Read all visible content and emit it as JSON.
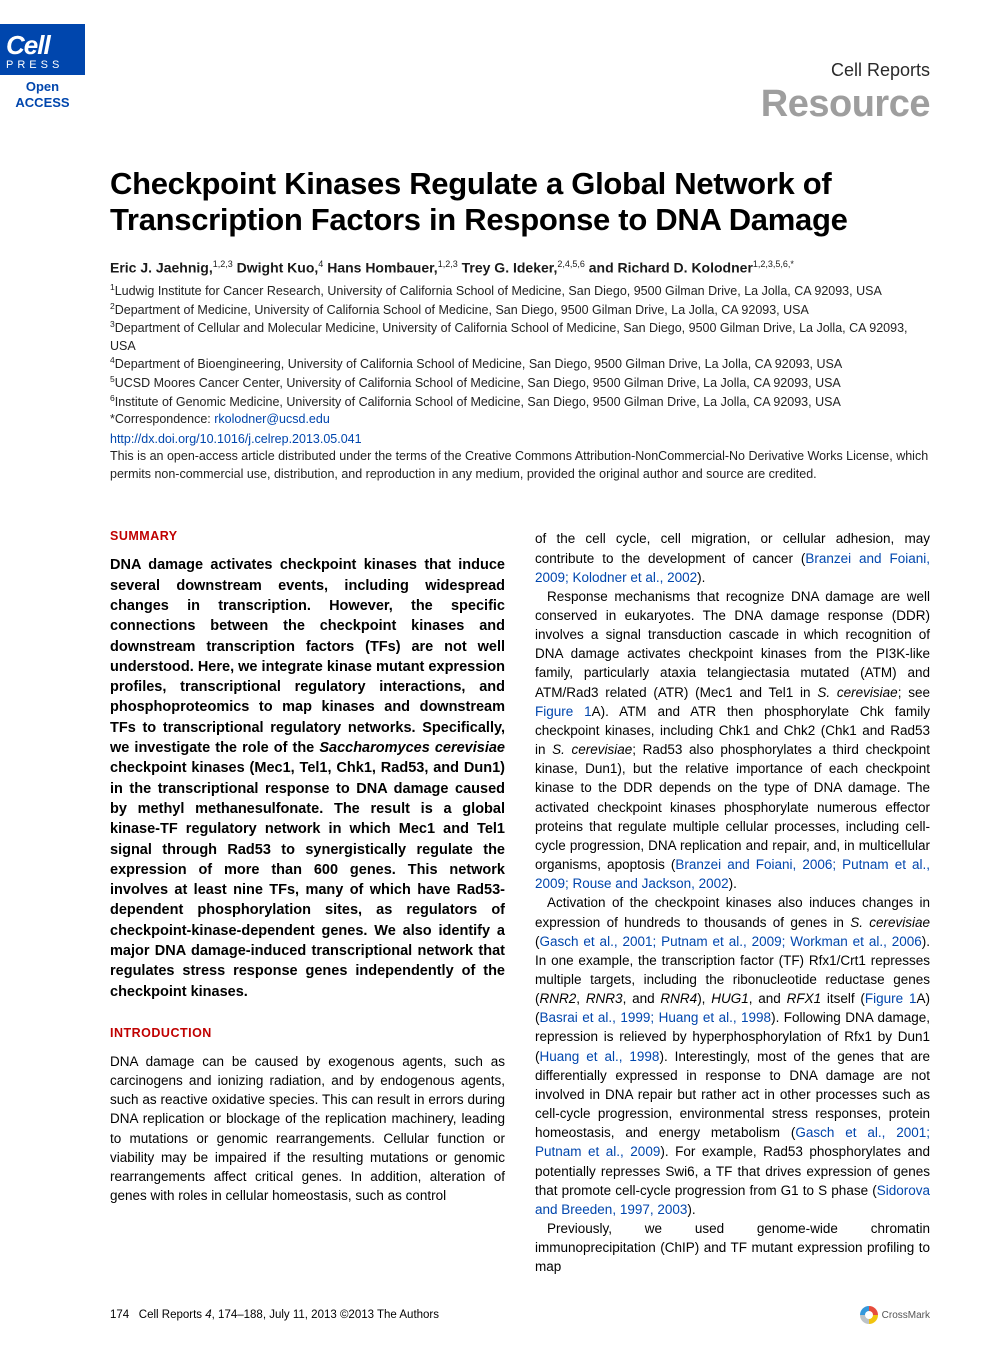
{
  "badge": {
    "logo_top": "Cell",
    "logo_bottom": "PRESS",
    "open_access": "Open\nACCESS"
  },
  "header": {
    "journal": "Cell Reports",
    "article_type": "Resource"
  },
  "title": "Checkpoint Kinases Regulate a Global Network of Transcription Factors in Response to DNA Damage",
  "authors_html": "Eric J. Jaehnig,<sup>1,2,3</sup> Dwight Kuo,<sup>4</sup> Hans Hombauer,<sup>1,2,3</sup> Trey G. Ideker,<sup>2,4,5,6</sup> and Richard D. Kolodner<sup>1,2,3,5,6,*</sup>",
  "affiliations": [
    "<sup>1</sup>Ludwig Institute for Cancer Research, University of California School of Medicine, San Diego, 9500 Gilman Drive, La Jolla, CA 92093, USA",
    "<sup>2</sup>Department of Medicine, University of California School of Medicine, San Diego, 9500 Gilman Drive, La Jolla, CA 92093, USA",
    "<sup>3</sup>Department of Cellular and Molecular Medicine, University of California School of Medicine, San Diego, 9500 Gilman Drive, La Jolla, CA 92093, USA",
    "<sup>4</sup>Department of Bioengineering, University of California School of Medicine, San Diego, 9500 Gilman Drive, La Jolla, CA 92093, USA",
    "<sup>5</sup>UCSD Moores Cancer Center, University of California School of Medicine, San Diego, 9500 Gilman Drive, La Jolla, CA 92093, USA",
    "<sup>6</sup>Institute of Genomic Medicine, University of California School of Medicine, San Diego, 9500 Gilman Drive, La Jolla, CA 92093, USA"
  ],
  "correspondence_label": "*Correspondence: ",
  "correspondence_email": "rkolodner@ucsd.edu",
  "doi": "http://dx.doi.org/10.1016/j.celrep.2013.05.041",
  "license": "This is an open-access article distributed under the terms of the Creative Commons Attribution-NonCommercial-No Derivative Works License, which permits non-commercial use, distribution, and reproduction in any medium, provided the original author and source are credited.",
  "sections": {
    "summary_head": "SUMMARY",
    "summary_body": "DNA damage activates checkpoint kinases that induce several downstream events, including widespread changes in transcription. However, the specific connections between the checkpoint kinases and downstream transcription factors (TFs) are not well understood. Here, we integrate kinase mutant expression profiles, transcriptional regulatory interactions, and phosphoproteomics to map kinases and downstream TFs to transcriptional regulatory networks. Specifically, we investigate the role of the <em>Saccharomyces cerevisiae</em> checkpoint kinases (Mec1, Tel1, Chk1, Rad53, and Dun1) in the transcriptional response to DNA damage caused by methyl methanesulfonate. The result is a global kinase-TF regulatory network in which Mec1 and Tel1 signal through Rad53 to synergistically regulate the expression of more than 600 genes. This network involves at least nine TFs, many of which have Rad53-dependent phosphorylation sites, as regulators of checkpoint-kinase-dependent genes. We also identify a major DNA damage-induced transcriptional network that regulates stress response genes independently of the checkpoint kinases.",
    "intro_head": "INTRODUCTION",
    "intro_col1": "DNA damage can be caused by exogenous agents, such as carcinogens and ionizing radiation, and by endogenous agents, such as reactive oxidative species. This can result in errors during DNA replication or blockage of the replication machinery, leading to mutations or genomic rearrangements. Cellular function or viability may be impaired if the resulting mutations or genomic rearrangements affect critical genes. In addition, alteration of genes with roles in cellular homeostasis, such as control",
    "right_paragraphs": [
      "of the cell cycle, cell migration, or cellular adhesion, may contribute to the development of cancer (<span class=\"ref-link\">Branzei and Foiani, 2009; Kolodner et al., 2002</span>).",
      "Response mechanisms that recognize DNA damage are well conserved in eukaryotes. The DNA damage response (DDR) involves a signal transduction cascade in which recognition of DNA damage activates checkpoint kinases from the PI3K-like family, particularly ataxia telangiectasia mutated (ATM) and ATM/Rad3 related (ATR) (Mec1 and Tel1 in <em>S. cerevisiae</em>; see <span class=\"ref-link\">Figure 1</span>A). ATM and ATR then phosphorylate Chk family checkpoint kinases, including Chk1 and Chk2 (Chk1 and Rad53 in <em>S. cerevisiae</em>; Rad53 also phosphorylates a third checkpoint kinase, Dun1), but the relative importance of each checkpoint kinase to the DDR depends on the type of DNA damage. The activated checkpoint kinases phosphorylate numerous effector proteins that regulate multiple cellular processes, including cell-cycle progression, DNA replication and repair, and, in multicellular organisms, apoptosis (<span class=\"ref-link\">Branzei and Foiani, 2006; Putnam et al., 2009; Rouse and Jackson, 2002</span>).",
      "Activation of the checkpoint kinases also induces changes in expression of hundreds to thousands of genes in <em>S. cerevisiae</em> (<span class=\"ref-link\">Gasch et al., 2001; Putnam et al., 2009; Workman et al., 2006</span>). In one example, the transcription factor (TF) Rfx1/Crt1 represses multiple targets, including the ribonucleotide reductase genes (<em>RNR2</em>, <em>RNR3</em>, and <em>RNR4</em>), <em>HUG1</em>, and <em>RFX1</em> itself (<span class=\"ref-link\">Figure 1</span>A) (<span class=\"ref-link\">Basrai et al., 1999; Huang et al., 1998</span>). Following DNA damage, repression is relieved by hyperphosphorylation of Rfx1 by Dun1 (<span class=\"ref-link\">Huang et al., 1998</span>). Interestingly, most of the genes that are differentially expressed in response to DNA damage are not involved in DNA repair but rather act in other processes such as cell-cycle progression, environmental stress responses, protein homeostasis, and energy metabolism (<span class=\"ref-link\">Gasch et al., 2001; Putnam et al., 2009</span>). For example, Rad53 phosphorylates and potentially represses Swi6, a TF that drives expression of genes that promote cell-cycle progression from G1 to S phase (<span class=\"ref-link\">Sidorova and Breeden, 1997, 2003</span>).",
      "Previously, we used genome-wide chromatin immunoprecipitation (ChIP) and TF mutant expression profiling to map"
    ]
  },
  "footer": {
    "page": "174",
    "citation": "Cell Reports <em>4</em>, 174–188, July 11, 2013 ©2013 The Authors",
    "crossmark": "CrossMark"
  },
  "colors": {
    "brand_blue": "#0046ad",
    "section_red": "#c00000",
    "article_type_gray": "#9e9e9e",
    "text": "#000000",
    "background": "#ffffff"
  },
  "fonts": {
    "title_size_pt": 23,
    "body_size_pt": 10,
    "summary_size_pt": 11,
    "affil_size_pt": 9
  }
}
